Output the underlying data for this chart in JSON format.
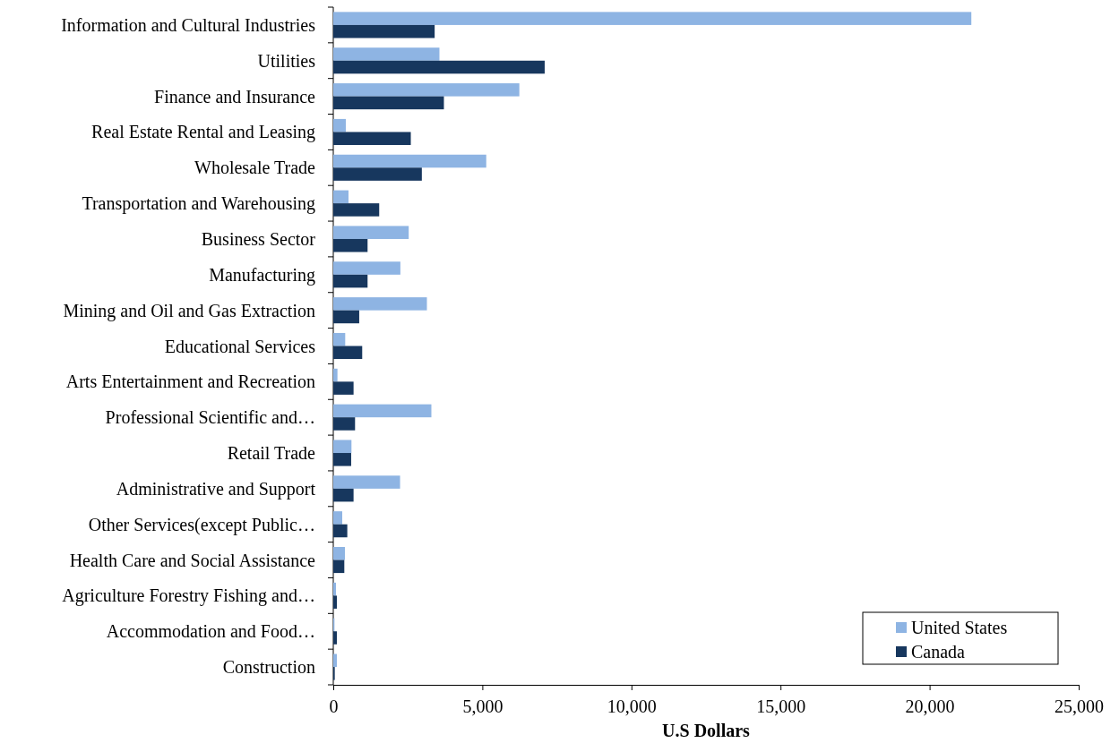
{
  "chart_data": {
    "type": "bar",
    "orientation": "horizontal",
    "xlabel": "U.S Dollars",
    "categories": [
      "Information and Cultural Industries",
      "Utilities",
      "Finance and Insurance",
      "Real Estate Rental and Leasing",
      "Wholesale Trade",
      "Transportation and Warehousing",
      "Business Sector",
      "Manufacturing",
      "Mining and Oil and Gas Extraction",
      "Educational Services",
      "Arts Entertainment and Recreation",
      "Professional Scientific and…",
      "Retail Trade",
      "Administrative and Support",
      "Other Services(except Public…",
      "Health Care and Social Assistance",
      "Agriculture Forestry Fishing and…",
      "Accommodation and Food…",
      "Construction"
    ],
    "series": [
      {
        "name": "United States",
        "color": "#8eb4e3",
        "values": [
          21400,
          3560,
          6240,
          420,
          5130,
          510,
          2530,
          2250,
          3140,
          400,
          140,
          3290,
          610,
          2240,
          300,
          390,
          90,
          40,
          120
        ]
      },
      {
        "name": "Canada",
        "color": "#17375e",
        "values": [
          3400,
          7090,
          3710,
          2600,
          2970,
          1540,
          1150,
          1150,
          870,
          970,
          680,
          730,
          600,
          680,
          470,
          370,
          120,
          120,
          50
        ]
      }
    ],
    "xlim": [
      0,
      25000
    ],
    "xticks": [
      {
        "value": 0,
        "label": "0"
      },
      {
        "value": 5000,
        "label": "5,000"
      },
      {
        "value": 10000,
        "label": "10,000"
      },
      {
        "value": 15000,
        "label": "15,000"
      },
      {
        "value": 20000,
        "label": "20,000"
      },
      {
        "value": 25000,
        "label": "25,000"
      }
    ],
    "grid": false,
    "legend": "bottom right"
  }
}
